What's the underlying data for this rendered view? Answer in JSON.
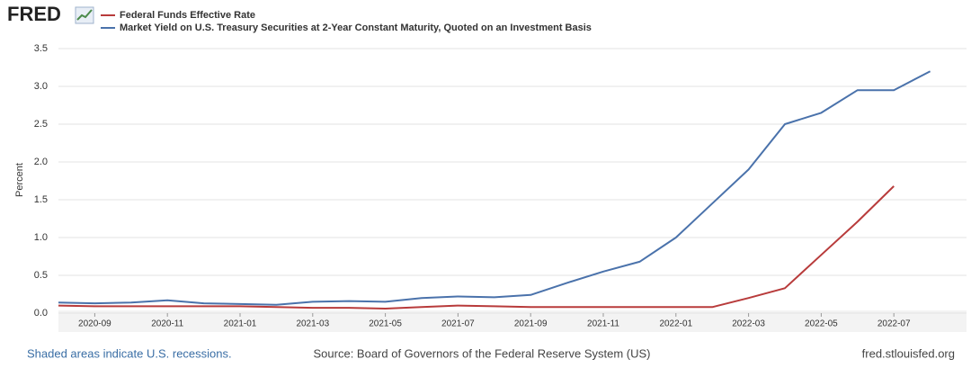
{
  "chart_data": {
    "type": "line",
    "logo": "FRED",
    "y_label": "Percent",
    "x": [
      "2020-08",
      "2020-09",
      "2020-10",
      "2020-11",
      "2020-12",
      "2021-01",
      "2021-02",
      "2021-03",
      "2021-04",
      "2021-05",
      "2021-06",
      "2021-07",
      "2021-08",
      "2021-09",
      "2021-10",
      "2021-11",
      "2021-12",
      "2022-01",
      "2022-02",
      "2022-03",
      "2022-04",
      "2022-05",
      "2022-06",
      "2022-07",
      "2022-08"
    ],
    "series": [
      {
        "name": "Federal Funds Effective Rate",
        "color": "#b83b3b",
        "values": [
          0.1,
          0.09,
          0.09,
          0.09,
          0.09,
          0.09,
          0.08,
          0.07,
          0.07,
          0.06,
          0.08,
          0.1,
          0.09,
          0.08,
          0.08,
          0.08,
          0.08,
          0.08,
          0.08,
          0.2,
          0.33,
          0.77,
          1.21,
          1.68,
          null
        ]
      },
      {
        "name": "Market Yield on U.S. Treasury Securities at 2-Year Constant Maturity, Quoted on an Investment Basis",
        "color": "#4a72ab",
        "values": [
          0.14,
          0.13,
          0.14,
          0.17,
          0.13,
          0.12,
          0.11,
          0.15,
          0.16,
          0.15,
          0.2,
          0.22,
          0.21,
          0.24,
          0.4,
          0.55,
          0.68,
          1.0,
          1.45,
          1.9,
          2.5,
          2.65,
          2.95,
          2.95,
          3.2
        ]
      }
    ],
    "xlim": [
      "2020-08",
      "2022-09"
    ],
    "xticks": [
      "2020-09",
      "2020-11",
      "2021-01",
      "2021-03",
      "2021-05",
      "2021-07",
      "2021-09",
      "2021-11",
      "2022-01",
      "2022-03",
      "2022-05",
      "2022-07"
    ],
    "ylim": [
      0,
      3.5
    ],
    "yticks": [
      {
        "value": 0,
        "label": "0.0"
      },
      0.5,
      {
        "value": 1,
        "label": "1.0"
      },
      1.5,
      {
        "value": 2,
        "label": "2.0"
      },
      2.5,
      {
        "value": 3,
        "label": "3.0"
      },
      3.5
    ],
    "grid": true,
    "footer_left": "Shaded areas indicate U.S. recessions.",
    "source": "Source: Board of Governors of the Federal Reserve System (US)",
    "site": "fred.stlouisfed.org"
  }
}
